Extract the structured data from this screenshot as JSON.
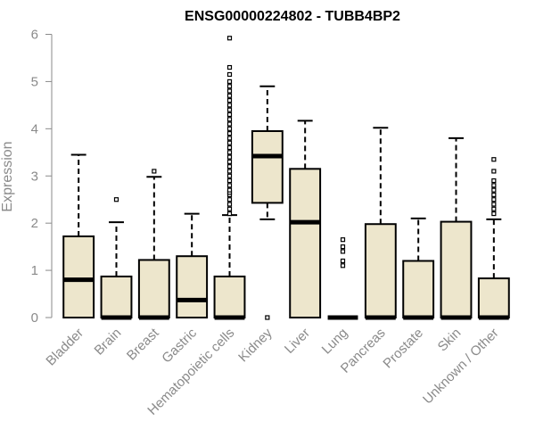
{
  "chart_data": {
    "type": "boxplot",
    "title": "ENSG00000224802 - TUBB4BP2",
    "ylabel": "Expression",
    "xlabel": "",
    "ylim": [
      0,
      6
    ],
    "yticks": [
      0,
      1,
      2,
      3,
      4,
      5,
      6
    ],
    "box_fill": "#ede6cc",
    "categories": [
      "Bladder",
      "Brain",
      "Breast",
      "Gastric",
      "Hematopoietic cells",
      "Kidney",
      "Liver",
      "Lung",
      "Pancreas",
      "Prostate",
      "Skin",
      "Unknown / Other"
    ],
    "boxes": [
      {
        "name": "Bladder",
        "whisker_low": 0,
        "q1": 0,
        "median": 0.8,
        "q3": 1.72,
        "whisker_high": 3.45,
        "outliers": []
      },
      {
        "name": "Brain",
        "whisker_low": 0,
        "q1": 0,
        "median": 0,
        "q3": 0.87,
        "whisker_high": 2.02,
        "outliers": [
          2.5
        ]
      },
      {
        "name": "Breast",
        "whisker_low": 0,
        "q1": 0,
        "median": 0,
        "q3": 1.22,
        "whisker_high": 2.98,
        "outliers": [
          3.1
        ]
      },
      {
        "name": "Gastric",
        "whisker_low": 0,
        "q1": 0,
        "median": 0.37,
        "q3": 1.3,
        "whisker_high": 2.2,
        "outliers": []
      },
      {
        "name": "Hematopoietic cells",
        "whisker_low": 0,
        "q1": 0,
        "median": 0,
        "q3": 0.87,
        "whisker_high": 2.17,
        "outliers": [
          2.2,
          2.3,
          2.4,
          2.5,
          2.6,
          2.65,
          2.7,
          2.8,
          2.9,
          3.0,
          3.1,
          3.2,
          3.3,
          3.4,
          3.5,
          3.6,
          3.7,
          3.8,
          3.9,
          4.0,
          4.1,
          4.2,
          4.3,
          4.4,
          4.5,
          4.6,
          4.7,
          4.8,
          4.9,
          5.0,
          5.15,
          5.3,
          5.92
        ]
      },
      {
        "name": "Kidney",
        "whisker_low": 2.08,
        "q1": 2.43,
        "median": 3.42,
        "q3": 3.95,
        "whisker_high": 4.9,
        "outliers": [
          0
        ]
      },
      {
        "name": "Liver",
        "whisker_low": 0,
        "q1": 0,
        "median": 2.02,
        "q3": 3.15,
        "whisker_high": 4.17,
        "outliers": []
      },
      {
        "name": "Lung",
        "whisker_low": 0,
        "q1": 0,
        "median": 0,
        "q3": 0,
        "whisker_high": 0,
        "outliers": [
          1.1,
          1.2,
          1.4,
          1.5,
          1.65
        ]
      },
      {
        "name": "Pancreas",
        "whisker_low": 0,
        "q1": 0,
        "median": 0,
        "q3": 1.98,
        "whisker_high": 4.02,
        "outliers": []
      },
      {
        "name": "Prostate",
        "whisker_low": 0,
        "q1": 0,
        "median": 0,
        "q3": 1.2,
        "whisker_high": 2.1,
        "outliers": []
      },
      {
        "name": "Skin",
        "whisker_low": 0,
        "q1": 0,
        "median": 0,
        "q3": 2.03,
        "whisker_high": 3.8,
        "outliers": []
      },
      {
        "name": "Unknown / Other",
        "whisker_low": 0,
        "q1": 0,
        "median": 0,
        "q3": 0.83,
        "whisker_high": 2.08,
        "outliers": [
          2.2,
          2.3,
          2.4,
          2.5,
          2.6,
          2.7,
          2.8,
          2.9,
          3.1,
          3.35
        ]
      }
    ]
  }
}
